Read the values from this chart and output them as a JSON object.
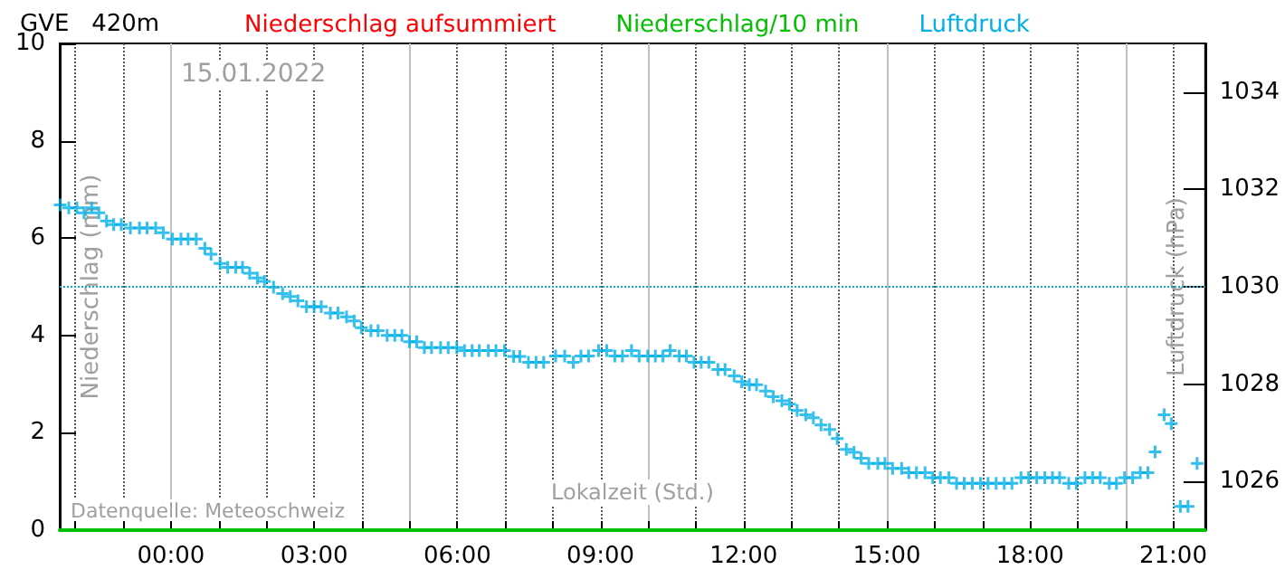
{
  "chart_data": {
    "type": "scatter",
    "title": "GVE   420m",
    "xlabel": "Lokalzeit (Std.)",
    "ylabel": "Niederschlag (mm)",
    "y2label": "Luftdruck (hPa)",
    "annotations": [
      "15.01.2022",
      "Datenquelle: Meteoschweiz"
    ],
    "xlim": [
      -2.33,
      21.67
    ],
    "xticks": [
      {
        "value": -2,
        "label": null
      },
      {
        "value": -1,
        "label": null
      },
      {
        "value": 0,
        "label": "00:00"
      },
      {
        "value": 1,
        "label": null
      },
      {
        "value": 2,
        "label": null
      },
      {
        "value": 3,
        "label": "03:00"
      },
      {
        "value": 4,
        "label": null
      },
      {
        "value": 5,
        "label": null
      },
      {
        "value": 6,
        "label": "06:00"
      },
      {
        "value": 7,
        "label": null
      },
      {
        "value": 8,
        "label": null
      },
      {
        "value": 9,
        "label": "09:00"
      },
      {
        "value": 10,
        "label": null
      },
      {
        "value": 11,
        "label": null
      },
      {
        "value": 12,
        "label": "12:00"
      },
      {
        "value": 13,
        "label": null
      },
      {
        "value": 14,
        "label": null
      },
      {
        "value": 15,
        "label": "15:00"
      },
      {
        "value": 16,
        "label": null
      },
      {
        "value": 17,
        "label": null
      },
      {
        "value": 18,
        "label": "18:00"
      },
      {
        "value": 19,
        "label": null
      },
      {
        "value": 20,
        "label": null
      },
      {
        "value": 21,
        "label": "21:00"
      }
    ],
    "ylim": [
      0,
      10
    ],
    "yticks": [
      0,
      2,
      4,
      6,
      8,
      10
    ],
    "y2lim": [
      1025,
      1035
    ],
    "y2ticks": [
      1026,
      1028,
      1030,
      1032,
      1034
    ],
    "grid": "x",
    "legend": "top",
    "ref_lines": [
      {
        "axis": "y2",
        "value": 1030,
        "label": null,
        "color": "#1aa6c4",
        "line_style": "dotted"
      }
    ],
    "series": [
      {
        "name": "Niederschlag aufsummiert",
        "color": "#ff0000",
        "type": "line",
        "marker": "none"
      },
      {
        "name": "Niederschlag/10 min",
        "color": "#00c000",
        "type": "line",
        "marker": "none",
        "x": [
          -2.33,
          21.67
        ],
        "values": [
          0,
          0
        ]
      },
      {
        "name": "Luftdruck",
        "color": "#00b0e8",
        "axis": "y2",
        "marker": "cross",
        "x": [
          -2.32,
          -2.14,
          -1.97,
          -1.82,
          -1.66,
          -1.51,
          -1.35,
          -1.2,
          -1.04,
          -0.85,
          -0.66,
          -0.5,
          -0.32,
          -0.16,
          0.03,
          0.21,
          0.36,
          0.53,
          0.71,
          0.84,
          1.03,
          1.19,
          1.36,
          1.5,
          1.65,
          1.81,
          1.96,
          2.15,
          2.34,
          2.5,
          2.66,
          2.84,
          3.0,
          3.15,
          3.34,
          3.5,
          3.68,
          3.84,
          3.99,
          4.19,
          4.34,
          4.53,
          4.69,
          4.84,
          5.0,
          5.15,
          5.31,
          5.46,
          5.65,
          5.81,
          5.99,
          6.15,
          6.31,
          6.46,
          6.65,
          6.81,
          6.99,
          7.18,
          7.31,
          7.49,
          7.65,
          7.81,
          8.06,
          8.25,
          8.43,
          8.59,
          8.75,
          8.96,
          9.13,
          9.3,
          9.46,
          9.65,
          9.81,
          9.99,
          10.15,
          10.31,
          10.46,
          10.65,
          10.8,
          10.96,
          11.11,
          11.27,
          11.46,
          11.61,
          11.8,
          11.96,
          12.12,
          12.27,
          12.46,
          12.62,
          12.8,
          12.96,
          13.12,
          13.3,
          13.46,
          13.62,
          13.8,
          13.96,
          14.15,
          14.31,
          14.46,
          14.62,
          14.81,
          14.96,
          15.12,
          15.31,
          15.46,
          15.62,
          15.8,
          15.96,
          16.12,
          16.3,
          16.46,
          16.62,
          16.79,
          16.96,
          17.12,
          17.29,
          17.46,
          17.62,
          17.81,
          17.97,
          18.14,
          18.31,
          18.47,
          18.62,
          18.81,
          18.97,
          19.15,
          19.31,
          19.47,
          19.66,
          19.81,
          19.98,
          20.15,
          20.31,
          20.47,
          20.62,
          20.81,
          20.96,
          21.15,
          21.31,
          21.5
        ],
        "values": [
          1031.68,
          1031.62,
          1031.62,
          1031.52,
          1031.62,
          1031.52,
          1031.35,
          1031.28,
          1031.28,
          1031.21,
          1031.21,
          1031.21,
          1031.21,
          1031.11,
          1030.98,
          1030.98,
          1030.98,
          1030.98,
          1030.79,
          1030.67,
          1030.48,
          1030.4,
          1030.4,
          1030.4,
          1030.28,
          1030.18,
          1030.11,
          1029.99,
          1029.86,
          1029.8,
          1029.71,
          1029.59,
          1029.59,
          1029.59,
          1029.46,
          1029.46,
          1029.38,
          1029.3,
          1029.16,
          1029.1,
          1029.1,
          1029.0,
          1029.0,
          1029.0,
          1028.87,
          1028.87,
          1028.75,
          1028.75,
          1028.75,
          1028.75,
          1028.75,
          1028.69,
          1028.69,
          1028.69,
          1028.69,
          1028.69,
          1028.69,
          1028.57,
          1028.57,
          1028.45,
          1028.45,
          1028.45,
          1028.58,
          1028.58,
          1028.45,
          1028.58,
          1028.58,
          1028.69,
          1028.69,
          1028.58,
          1028.58,
          1028.69,
          1028.58,
          1028.58,
          1028.58,
          1028.58,
          1028.69,
          1028.58,
          1028.58,
          1028.45,
          1028.45,
          1028.45,
          1028.3,
          1028.3,
          1028.17,
          1028.05,
          1027.99,
          1027.99,
          1027.86,
          1027.74,
          1027.66,
          1027.59,
          1027.46,
          1027.37,
          1027.31,
          1027.16,
          1027.07,
          1026.88,
          1026.66,
          1026.6,
          1026.48,
          1026.37,
          1026.37,
          1026.37,
          1026.27,
          1026.27,
          1026.18,
          1026.18,
          1026.18,
          1026.08,
          1026.08,
          1026.08,
          1025.96,
          1025.96,
          1025.96,
          1025.96,
          1025.96,
          1025.96,
          1025.96,
          1025.96,
          1026.08,
          1026.08,
          1026.08,
          1026.08,
          1026.08,
          1026.08,
          1025.96,
          1025.96,
          1026.08,
          1026.08,
          1026.08,
          1025.96,
          1025.96,
          1026.08,
          1026.08,
          1026.18,
          1026.18,
          1026.61,
          1027.37,
          1027.19,
          1025.49,
          1025.49,
          1026.37
        ]
      }
    ]
  }
}
